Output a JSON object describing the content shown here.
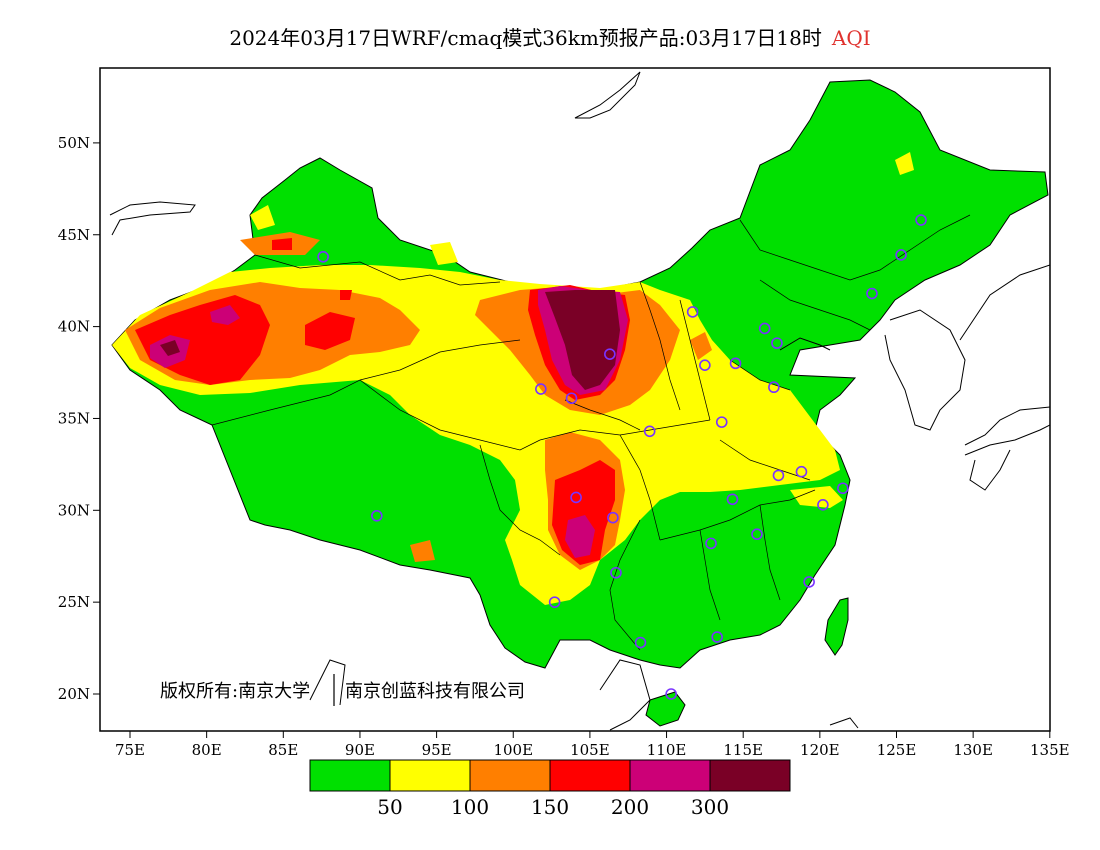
{
  "title": {
    "main": "2024年03月17日WRF/cmaq模式36km预报产品:03月17日18时",
    "variable": "AQI"
  },
  "axes": {
    "x_ticks": [
      "75E",
      "80E",
      "85E",
      "90E",
      "95E",
      "100E",
      "105E",
      "110E",
      "115E",
      "120E",
      "125E",
      "130E",
      "135E"
    ],
    "y_ticks": [
      "20N",
      "25N",
      "30N",
      "35N",
      "40N",
      "45N",
      "50N"
    ]
  },
  "copyright": {
    "owner": "版权所有:南京大学",
    "partner": "南京创蓝科技有限公司"
  },
  "colorbar": {
    "colors": [
      "#00e000",
      "#ffff00",
      "#ff7f00",
      "#ff0000",
      "#cc0077",
      "#7a0026"
    ],
    "labels": [
      "50",
      "100",
      "150",
      "200",
      "300"
    ]
  },
  "stations": [
    [
      87.6,
      43.8
    ],
    [
      91.1,
      29.7
    ],
    [
      101.8,
      36.6
    ],
    [
      103.8,
      36.1
    ],
    [
      104.1,
      30.7
    ],
    [
      106.5,
      29.6
    ],
    [
      106.7,
      26.6
    ],
    [
      102.7,
      25.0
    ],
    [
      108.3,
      22.8
    ],
    [
      110.3,
      20.0
    ],
    [
      113.3,
      23.1
    ],
    [
      108.9,
      34.3
    ],
    [
      111.7,
      40.8
    ],
    [
      112.5,
      37.9
    ],
    [
      114.5,
      38.0
    ],
    [
      116.4,
      39.9
    ],
    [
      117.2,
      39.1
    ],
    [
      117.0,
      36.7
    ],
    [
      113.6,
      34.8
    ],
    [
      117.3,
      31.9
    ],
    [
      118.8,
      32.1
    ],
    [
      121.5,
      31.2
    ],
    [
      120.2,
      30.3
    ],
    [
      114.3,
      30.6
    ],
    [
      112.9,
      28.2
    ],
    [
      115.9,
      28.7
    ],
    [
      119.3,
      26.1
    ],
    [
      123.4,
      41.8
    ],
    [
      125.3,
      43.9
    ],
    [
      126.6,
      45.8
    ],
    [
      106.3,
      38.5
    ]
  ]
}
